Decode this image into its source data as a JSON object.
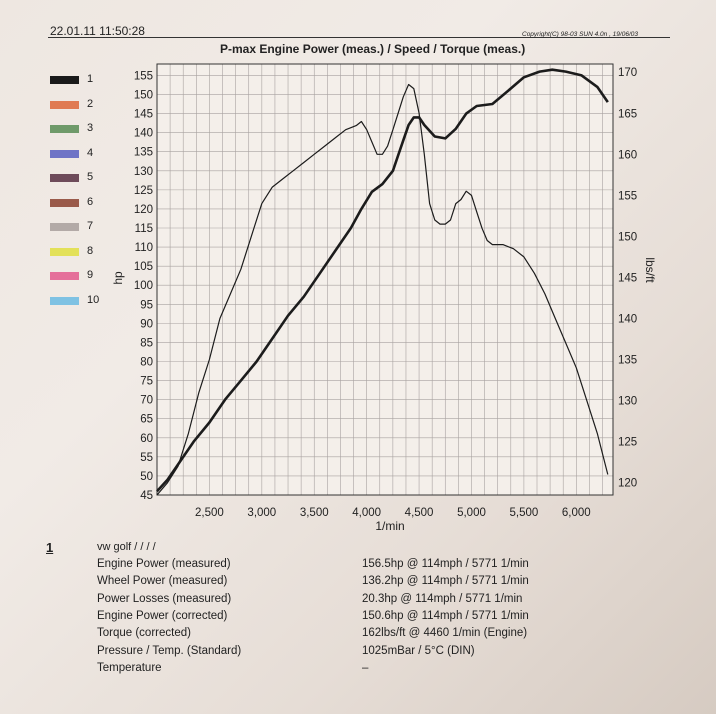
{
  "header": {
    "timestamp": "22.01.11 11:50:28",
    "copyright": "Copyright(C) 98-03 SUN 4.0n , 19/06/03",
    "title": "P-max Engine Power (meas.) / Speed / Torque (meas.)"
  },
  "legend": [
    {
      "label": "1",
      "color": "#1a1a1a"
    },
    {
      "label": "2",
      "color": "#e07a52"
    },
    {
      "label": "3",
      "color": "#6f9a6a"
    },
    {
      "label": "4",
      "color": "#6f74c6"
    },
    {
      "label": "5",
      "color": "#6e4b5a"
    },
    {
      "label": "6",
      "color": "#9a5a4a"
    },
    {
      "label": "7",
      "color": "#b3aaa7"
    },
    {
      "label": "8",
      "color": "#e3e159"
    },
    {
      "label": "9",
      "color": "#e5709a"
    },
    {
      "label": "10",
      "color": "#7fc2e3"
    }
  ],
  "chart_data": {
    "type": "line",
    "title": "P-max Engine Power (meas.) / Speed / Torque (meas.)",
    "xlabel": "1/min",
    "ylabel": "hp",
    "y2label": "lbs/ft",
    "xlim": [
      2000,
      6350
    ],
    "ylim": [
      45,
      158
    ],
    "y2lim": [
      118.5,
      171
    ],
    "xticks": [
      2500,
      3000,
      3500,
      4000,
      4500,
      5000,
      5500,
      6000
    ],
    "xtick_labels": [
      "2,500",
      "3,000",
      "3,500",
      "4,000",
      "4,500",
      "5,000",
      "5,500",
      "6,000"
    ],
    "yticks": [
      45,
      50,
      55,
      60,
      65,
      70,
      75,
      80,
      85,
      90,
      95,
      100,
      105,
      110,
      115,
      120,
      125,
      130,
      135,
      140,
      145,
      150,
      155
    ],
    "y2ticks": [
      120,
      125,
      130,
      135,
      140,
      145,
      150,
      155,
      160,
      165,
      170
    ],
    "grid": true,
    "series": [
      {
        "name": "1",
        "axis": "left",
        "x": [
          2000,
          2100,
          2200,
          2350,
          2500,
          2650,
          2800,
          2950,
          3100,
          3250,
          3400,
          3550,
          3700,
          3850,
          3950,
          4050,
          4150,
          4250,
          4300,
          4350,
          4400,
          4450,
          4500,
          4550,
          4650,
          4750,
          4850,
          4950,
          5050,
          5200,
          5350,
          5500,
          5650,
          5771,
          5900,
          6050,
          6200,
          6300
        ],
        "y": [
          46,
          49,
          53,
          59,
          64,
          70,
          75,
          80,
          86,
          92,
          97,
          103,
          109,
          115,
          120,
          124.5,
          126.5,
          130,
          134,
          138,
          142,
          144,
          144,
          142,
          139,
          138.5,
          141,
          145,
          147,
          147.5,
          151,
          154.5,
          156,
          156.5,
          156,
          155,
          152,
          148
        ]
      },
      {
        "name": "Torque",
        "axis": "right",
        "x": [
          2000,
          2100,
          2200,
          2300,
          2400,
          2500,
          2600,
          2700,
          2800,
          2900,
          3000,
          3100,
          3200,
          3300,
          3400,
          3500,
          3600,
          3700,
          3800,
          3900,
          3950,
          4000,
          4050,
          4100,
          4150,
          4200,
          4250,
          4300,
          4350,
          4400,
          4450,
          4500,
          4550,
          4600,
          4650,
          4700,
          4750,
          4800,
          4850,
          4900,
          4950,
          5000,
          5050,
          5100,
          5150,
          5200,
          5300,
          5400,
          5500,
          5600,
          5700,
          5800,
          5900,
          6000,
          6100,
          6200,
          6300
        ],
        "y": [
          118.5,
          120,
          122,
          126,
          131,
          135,
          140,
          143,
          146,
          150,
          154,
          156,
          157,
          158,
          159,
          160,
          161,
          162,
          163,
          163.5,
          164,
          163,
          161.5,
          160,
          160,
          161,
          163,
          165,
          167,
          168.5,
          168,
          165,
          160,
          154,
          152,
          151.5,
          151.5,
          152,
          154,
          154.5,
          155.5,
          155,
          153,
          151,
          149.5,
          149,
          149,
          148.5,
          147.5,
          145.5,
          143,
          140,
          137,
          134,
          130,
          126,
          121
        ]
      }
    ]
  },
  "results": {
    "run_number": "1",
    "run_name": "vw golf / / / /",
    "rows": [
      {
        "label": "Engine Power (measured)",
        "value": "156.5hp @ 114mph / 5771 1/min"
      },
      {
        "label": "Wheel Power (measured)",
        "value": "136.2hp @ 114mph / 5771 1/min"
      },
      {
        "label": "Power Losses (measured)",
        "value": "20.3hp @ 114mph / 5771 1/min"
      },
      {
        "label": "Engine Power (corrected)",
        "value": "150.6hp @ 114mph / 5771 1/min"
      },
      {
        "label": "Torque (corrected)",
        "value": "162lbs/ft @ 4460 1/min (Engine)"
      },
      {
        "label": "Pressure / Temp. (Standard)",
        "value": "1025mBar / 5°C (DIN)"
      },
      {
        "label": "Temperature",
        "value": "–"
      }
    ]
  }
}
